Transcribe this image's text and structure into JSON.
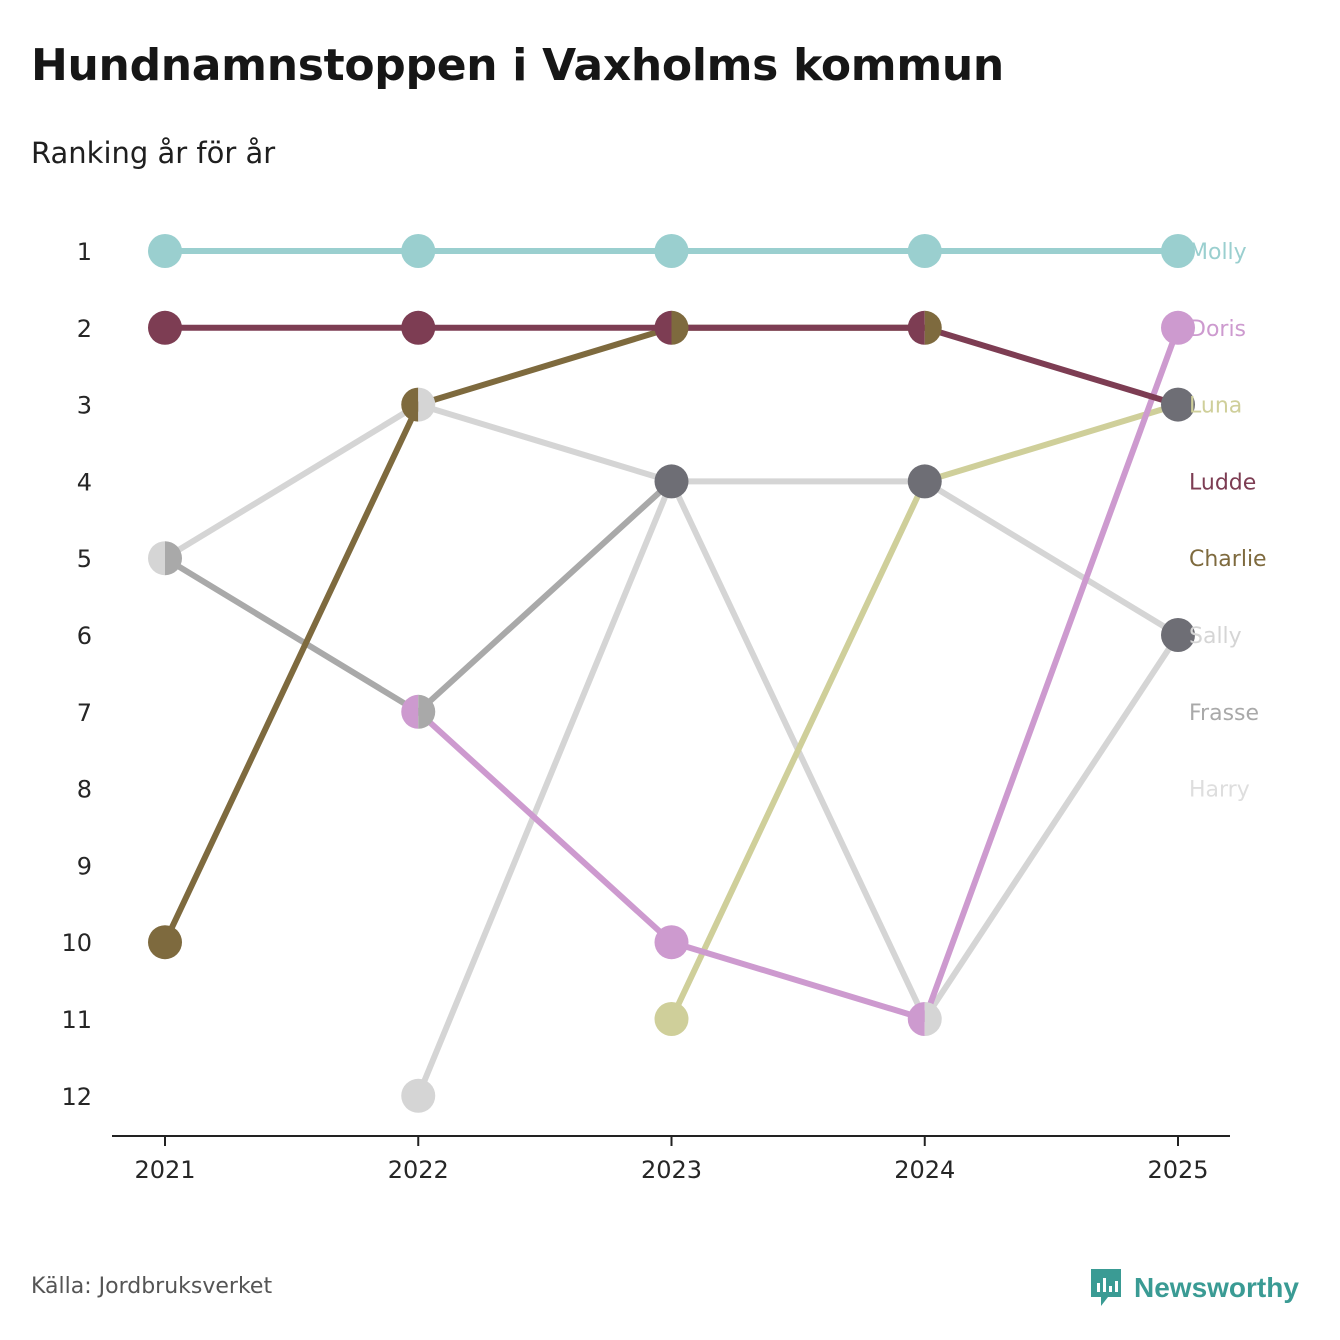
{
  "title": "Hundnamnstoppen i Vaxholms kommun",
  "subtitle": "Ranking år för år",
  "source": "Källa: Jordbruksverket",
  "brand": "Newsworthy",
  "colors": {
    "brand": "#3a9b94",
    "axis": "#222222"
  },
  "chart_data": {
    "type": "line",
    "chart_kind": "bump",
    "x": [
      "2021",
      "2022",
      "2023",
      "2024",
      "2025"
    ],
    "y_ticks": [
      1,
      2,
      3,
      4,
      5,
      6,
      7,
      8,
      9,
      10,
      11,
      12
    ],
    "ylim": [
      1,
      12
    ],
    "y_inverted": true,
    "xlabel": "",
    "ylabel": "",
    "series": [
      {
        "name": "Harry",
        "color": "#d5d5d5",
        "values": [
          5,
          3,
          4,
          11,
          6
        ]
      },
      {
        "name": "Sally",
        "color": "#d5d5d5",
        "values": [
          null,
          12,
          4,
          4,
          6
        ]
      },
      {
        "name": "Frasse",
        "color": "#a9a9a9",
        "values": [
          5,
          7,
          4,
          null,
          null
        ]
      },
      {
        "name": "Charlie",
        "color": "#7e6a3e",
        "values": [
          10,
          3,
          2,
          2,
          null
        ]
      },
      {
        "name": "Luna",
        "color": "#cfcf9a",
        "values": [
          null,
          null,
          11,
          4,
          3
        ]
      },
      {
        "name": "Doris",
        "color": "#cd9acf",
        "values": [
          null,
          7,
          10,
          11,
          2
        ]
      },
      {
        "name": "Ludde",
        "color": "#7d3d53",
        "values": [
          2,
          2,
          2,
          2,
          3
        ]
      },
      {
        "name": "Molly",
        "color": "#9acfcf",
        "values": [
          1,
          1,
          1,
          1,
          1
        ]
      }
    ],
    "legend": [
      {
        "name": "Molly",
        "color": "#9acfcf",
        "rank": 1
      },
      {
        "name": "Doris",
        "color": "#cd9acf",
        "rank": 2
      },
      {
        "name": "Luna",
        "color": "#cfcf9a",
        "rank": 3
      },
      {
        "name": "Ludde",
        "color": "#7d3d53",
        "rank": 4
      },
      {
        "name": "Charlie",
        "color": "#7e6a3e",
        "rank": 5
      },
      {
        "name": "Sally",
        "color": "#d5d5d5",
        "rank": 6
      },
      {
        "name": "Frasse",
        "color": "#a9a9a9",
        "rank": 7
      },
      {
        "name": "Harry",
        "color": "#dedede",
        "rank": 8
      }
    ],
    "markers": [
      {
        "x": "2021",
        "rank": 1,
        "colors": [
          "#9acfcf"
        ]
      },
      {
        "x": "2021",
        "rank": 2,
        "colors": [
          "#7d3d53"
        ]
      },
      {
        "x": "2021",
        "rank": 5,
        "colors": [
          "#d5d5d5",
          "#a9a9a9"
        ]
      },
      {
        "x": "2021",
        "rank": 10,
        "colors": [
          "#7e6a3e"
        ]
      },
      {
        "x": "2022",
        "rank": 1,
        "colors": [
          "#9acfcf"
        ]
      },
      {
        "x": "2022",
        "rank": 2,
        "colors": [
          "#7d3d53"
        ]
      },
      {
        "x": "2022",
        "rank": 3,
        "colors": [
          "#7e6a3e",
          "#d5d5d5"
        ]
      },
      {
        "x": "2022",
        "rank": 7,
        "colors": [
          "#cd9acf",
          "#a9a9a9"
        ]
      },
      {
        "x": "2022",
        "rank": 12,
        "colors": [
          "#d5d5d5"
        ]
      },
      {
        "x": "2023",
        "rank": 1,
        "colors": [
          "#9acfcf"
        ]
      },
      {
        "x": "2023",
        "rank": 2,
        "colors": [
          "#7d3d53",
          "#7e6a3e"
        ]
      },
      {
        "x": "2023",
        "rank": 4,
        "colors": [
          "#6e6e75"
        ]
      },
      {
        "x": "2023",
        "rank": 10,
        "colors": [
          "#cd9acf"
        ]
      },
      {
        "x": "2023",
        "rank": 11,
        "colors": [
          "#cfcf9a"
        ]
      },
      {
        "x": "2024",
        "rank": 1,
        "colors": [
          "#9acfcf"
        ]
      },
      {
        "x": "2024",
        "rank": 2,
        "colors": [
          "#7d3d53",
          "#7e6a3e"
        ]
      },
      {
        "x": "2024",
        "rank": 4,
        "colors": [
          "#6e6e75"
        ]
      },
      {
        "x": "2024",
        "rank": 11,
        "colors": [
          "#cd9acf",
          "#d5d5d5"
        ]
      },
      {
        "x": "2025",
        "rank": 1,
        "colors": [
          "#9acfcf"
        ]
      },
      {
        "x": "2025",
        "rank": 2,
        "colors": [
          "#cd9acf"
        ]
      },
      {
        "x": "2025",
        "rank": 3,
        "colors": [
          "#6e6e75"
        ]
      },
      {
        "x": "2025",
        "rank": 6,
        "colors": [
          "#6e6e75"
        ]
      }
    ]
  }
}
